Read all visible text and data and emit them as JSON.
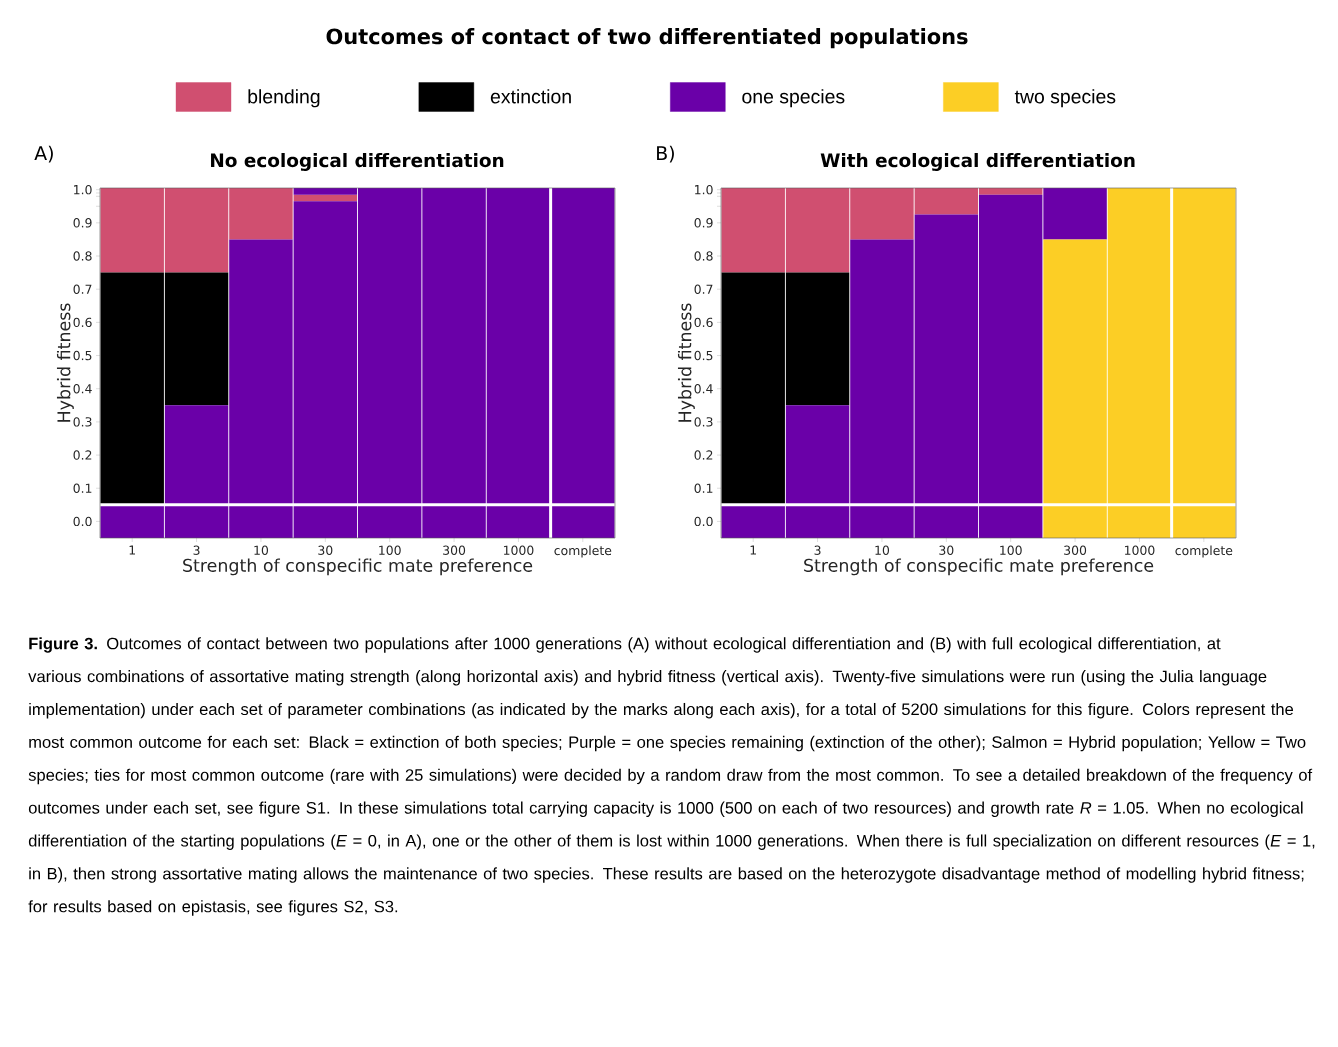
{
  "chart_data": [
    {
      "type": "bar",
      "title": "No ecological differentiation",
      "xlabel": "Strength of conspecific mate preference",
      "ylabel": "Hybrid fitness",
      "annotations": [
        "A)"
      ],
      "legend": "top",
      "categories": [
        "1",
        "3",
        "10",
        "30",
        "100",
        "300",
        "1000",
        "complete"
      ],
      "ylim": [
        -0.05,
        1.005
      ],
      "yticks": [
        {
          "value": 0,
          "label": "0.0"
        },
        0.1,
        0.2,
        0.3,
        0.4,
        0.5,
        0.6,
        0.7,
        0.8,
        0.9,
        {
          "value": 0.95,
          "label": null
        },
        {
          "value": 0.98,
          "label": null
        },
        {
          "value": 0.99,
          "label": null
        },
        {
          "value": 1,
          "label": "1.0"
        }
      ],
      "ref_lines": [
        {
          "axis": "y",
          "value": 0.05,
          "color": "#ffffff"
        }
      ],
      "series": [
        {
          "name": "blending",
          "color": "#d04f70",
          "base": [
            0.75,
            0.75,
            0.85,
            0.965,
            null,
            null,
            null,
            null
          ],
          "values": [
            0.255,
            0.255,
            0.155,
            0.02,
            null,
            null,
            null,
            null
          ]
        },
        {
          "name": "extinction",
          "color": "#000000",
          "base": [
            0.05,
            0.35,
            null,
            null,
            null,
            null,
            null,
            null
          ],
          "values": [
            0.7,
            0.4,
            null,
            null,
            null,
            null,
            null,
            null
          ]
        },
        {
          "name": "one species",
          "color": "#6a00a8",
          "base": [
            -0.05,
            -0.05,
            -0.05,
            -0.05,
            -0.05,
            -0.05,
            -0.05,
            -0.05
          ],
          "values": [
            0.1,
            0.4,
            0.9,
            1.015,
            1.055,
            1.055,
            1.055,
            1.055
          ]
        },
        {
          "name": "two species",
          "color": "#fcce25",
          "base": [
            null,
            null,
            null,
            null,
            null,
            null,
            null,
            null
          ],
          "values": [
            null,
            null,
            null,
            null,
            null,
            null,
            null,
            null
          ]
        },
        {
          "color": "#6a00a8",
          "base": [
            null,
            null,
            null,
            0.985,
            null,
            null,
            null,
            null
          ],
          "values": [
            null,
            null,
            null,
            0.02,
            null,
            null,
            null,
            null
          ]
        }
      ]
    },
    {
      "type": "bar",
      "title": "With ecological differentiation",
      "xlabel": "Strength of conspecific mate preference",
      "ylabel": "Hybrid fitness",
      "annotations": [
        "B)"
      ],
      "categories": [
        "1",
        "3",
        "10",
        "30",
        "100",
        "300",
        "1000",
        "complete"
      ],
      "ylim": [
        -0.05,
        1.005
      ],
      "yticks": [
        {
          "value": 0,
          "label": "0.0"
        },
        0.1,
        0.2,
        0.3,
        0.4,
        0.5,
        0.6,
        0.7,
        0.8,
        0.9,
        {
          "value": 0.95,
          "label": null
        },
        {
          "value": 0.98,
          "label": null
        },
        {
          "value": 0.99,
          "label": null
        },
        {
          "value": 1,
          "label": "1.0"
        }
      ],
      "ref_lines": [
        {
          "axis": "y",
          "value": 0.05,
          "color": "#ffffff"
        }
      ],
      "series": [
        {
          "color": "#d04f70",
          "base": [
            0.75,
            0.75,
            0.85,
            0.925,
            0.985,
            null,
            null,
            null
          ],
          "values": [
            0.255,
            0.255,
            0.155,
            0.08,
            0.02,
            null,
            null,
            null
          ]
        },
        {
          "color": "#000000",
          "base": [
            0.05,
            0.35,
            null,
            null,
            null,
            null,
            null,
            null
          ],
          "values": [
            0.7,
            0.4,
            null,
            null,
            null,
            null,
            null,
            null
          ]
        },
        {
          "color": "#6a00a8",
          "base": [
            -0.05,
            -0.05,
            -0.05,
            -0.05,
            -0.05,
            0.85,
            null,
            null
          ],
          "values": [
            0.1,
            0.4,
            0.9,
            0.975,
            1.035,
            0.155,
            null,
            null
          ]
        },
        {
          "color": "#fcce25",
          "base": [
            null,
            null,
            null,
            null,
            null,
            -0.05,
            -0.05,
            -0.05
          ],
          "values": [
            null,
            null,
            null,
            null,
            null,
            0.9,
            1.055,
            1.055
          ]
        }
      ]
    },
    {
      "type": "other",
      "title": "Outcomes of contact of two differentiated populations",
      "annotations": [
        "**Figure 3.** Outcomes of contact between two populations after 1000 generations (A) without ecological differentiation and (B) with full ecological differentiation, at various combinations of assortative mating strength (along horizontal axis) and hybrid fitness (vertical axis). Twenty-five simulations were run (using the Julia language implementation) under each set of parameter combinations (as indicated by the marks along each axis), for a total of 5200 simulations for this figure. Colors represent the most common outcome for each set: Black = extinction of both species; Purple = one species remaining (extinction of the other); Salmon = Hybrid population; Yellow = Two species; ties for most common outcome (rare with 25 simulations) were decided by a random draw from the most common. To see a detailed breakdown of the frequency of outcomes under each set, see figure S1. In these simulations total carrying capacity is 1000 (500 on each of two resources) and growth rate *R* = 1.05. When no ecological differentiation of the starting populations (*E* = 0, in A), one or the other of them is lost within 1000 generations. When there is full specialization on different resources (*E* = 1, in B), then strong assortative mating allows the maintenance of two species. These results are based on the heterozygote disadvantage method of modelling hybrid fitness; for results based on epistasis, see figures S2, S3."
      ]
    }
  ]
}
